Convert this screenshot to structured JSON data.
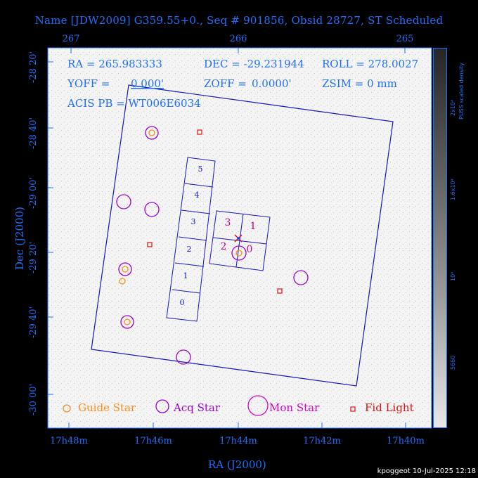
{
  "title": "Name [JDW2009] G359.55+0., Seq # 901856, Obsid 28727, ST Scheduled",
  "top_ticks": [
    "267",
    "266",
    "265"
  ],
  "bottom_ticks": [
    "17h48m",
    "17h46m",
    "17h44m",
    "17h42m",
    "17h40m"
  ],
  "left_ticks": [
    "-28 20'",
    "-28 40'",
    "-29 00'",
    "-29 20'",
    "-29 40'",
    "-30 00'"
  ],
  "xlabel": "RA (J2000)",
  "ylabel": "Dec (J2000)",
  "info": {
    "line1_ra": "RA = 265.983333",
    "line1_dec": "DEC = -29.231944",
    "line1_roll": "ROLL = 278.0027",
    "line2_yoff": "YOFF =",
    "line2_yoff_val": "0.000'",
    "line2_zoff": "ZOFF =",
    "line2_zoff_val": "0.0000'",
    "line2_zsim": "ZSIM = 0 mm",
    "line3": "ACIS PB = WT006E6034"
  },
  "chips_s": [
    "5",
    "4",
    "3",
    "2",
    "1",
    "0"
  ],
  "chips_i": [
    "3",
    "1",
    "2",
    "0"
  ],
  "legend": {
    "guide": "Guide Star",
    "acq": "Acq Star",
    "mon": "Mon Star",
    "fid": "Fid Light"
  },
  "colorbar": {
    "title": "PUSS scaled density",
    "ticks": [
      "5660",
      "10⁴",
      "1.6x10⁴",
      "2x10⁴"
    ]
  },
  "footer": "kpoggeot 10-Jul-2025 12:18",
  "colors": {
    "axis": "#1f6fff",
    "guide": "#ff8c1a",
    "acq": "#9b00d6",
    "mon": "#d600c8",
    "fid": "#e01010",
    "field": "#1414c8",
    "chip_label": "#d0008c"
  }
}
